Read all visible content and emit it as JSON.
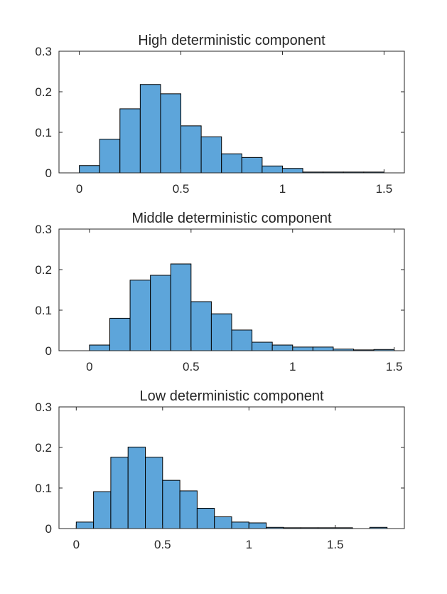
{
  "chart_data": [
    {
      "type": "bar",
      "title": "High deterministic component",
      "xlabel": "",
      "ylabel": "",
      "bin_width": 0.1,
      "bins": [
        {
          "x0": 0.0,
          "x1": 0.1,
          "value": 0.018
        },
        {
          "x0": 0.1,
          "x1": 0.2,
          "value": 0.083
        },
        {
          "x0": 0.2,
          "x1": 0.3,
          "value": 0.158
        },
        {
          "x0": 0.3,
          "x1": 0.4,
          "value": 0.218
        },
        {
          "x0": 0.4,
          "x1": 0.5,
          "value": 0.195
        },
        {
          "x0": 0.5,
          "x1": 0.6,
          "value": 0.116
        },
        {
          "x0": 0.6,
          "x1": 0.7,
          "value": 0.089
        },
        {
          "x0": 0.7,
          "x1": 0.8,
          "value": 0.047
        },
        {
          "x0": 0.8,
          "x1": 0.9,
          "value": 0.038
        },
        {
          "x0": 0.9,
          "x1": 1.0,
          "value": 0.017
        },
        {
          "x0": 1.0,
          "x1": 1.1,
          "value": 0.011
        },
        {
          "x0": 1.1,
          "x1": 1.2,
          "value": 0.002
        },
        {
          "x0": 1.2,
          "x1": 1.3,
          "value": 0.002
        },
        {
          "x0": 1.3,
          "x1": 1.4,
          "value": 0.002
        },
        {
          "x0": 1.4,
          "x1": 1.5,
          "value": 0.002
        }
      ],
      "xlim": [
        -0.1,
        1.6
      ],
      "ylim": [
        0,
        0.3
      ],
      "xticks": [
        0,
        0.5,
        1,
        1.5
      ],
      "xtick_labels": [
        "0",
        "0.5",
        "1",
        "1.5"
      ],
      "yticks": [
        0,
        0.1,
        0.2,
        0.3
      ],
      "ytick_labels": [
        "0",
        "0.1",
        "0.2",
        "0.3"
      ],
      "grid": false
    },
    {
      "type": "bar",
      "title": "Middle deterministic component",
      "xlabel": "",
      "ylabel": "",
      "bin_width": 0.1,
      "bins": [
        {
          "x0": 0.0,
          "x1": 0.1,
          "value": 0.014
        },
        {
          "x0": 0.1,
          "x1": 0.2,
          "value": 0.08
        },
        {
          "x0": 0.2,
          "x1": 0.3,
          "value": 0.174
        },
        {
          "x0": 0.3,
          "x1": 0.4,
          "value": 0.186
        },
        {
          "x0": 0.4,
          "x1": 0.5,
          "value": 0.214
        },
        {
          "x0": 0.5,
          "x1": 0.6,
          "value": 0.121
        },
        {
          "x0": 0.6,
          "x1": 0.7,
          "value": 0.091
        },
        {
          "x0": 0.7,
          "x1": 0.8,
          "value": 0.051
        },
        {
          "x0": 0.8,
          "x1": 0.9,
          "value": 0.021
        },
        {
          "x0": 0.9,
          "x1": 1.0,
          "value": 0.014
        },
        {
          "x0": 1.0,
          "x1": 1.1,
          "value": 0.009
        },
        {
          "x0": 1.1,
          "x1": 1.2,
          "value": 0.009
        },
        {
          "x0": 1.2,
          "x1": 1.3,
          "value": 0.004
        },
        {
          "x0": 1.3,
          "x1": 1.4,
          "value": 0.002
        },
        {
          "x0": 1.4,
          "x1": 1.5,
          "value": 0.003
        }
      ],
      "xlim": [
        -0.15,
        1.55
      ],
      "ylim": [
        0,
        0.3
      ],
      "xticks": [
        0,
        0.5,
        1,
        1.5
      ],
      "xtick_labels": [
        "0",
        "0.5",
        "1",
        "1.5"
      ],
      "yticks": [
        0,
        0.1,
        0.2,
        0.3
      ],
      "ytick_labels": [
        "0",
        "0.1",
        "0.2",
        "0.3"
      ],
      "grid": false
    },
    {
      "type": "bar",
      "title": "Low deterministic component",
      "xlabel": "",
      "ylabel": "",
      "bin_width": 0.1,
      "bins": [
        {
          "x0": 0.0,
          "x1": 0.1,
          "value": 0.016
        },
        {
          "x0": 0.1,
          "x1": 0.2,
          "value": 0.091
        },
        {
          "x0": 0.2,
          "x1": 0.3,
          "value": 0.176
        },
        {
          "x0": 0.3,
          "x1": 0.4,
          "value": 0.201
        },
        {
          "x0": 0.4,
          "x1": 0.5,
          "value": 0.176
        },
        {
          "x0": 0.5,
          "x1": 0.6,
          "value": 0.119
        },
        {
          "x0": 0.6,
          "x1": 0.7,
          "value": 0.093
        },
        {
          "x0": 0.7,
          "x1": 0.8,
          "value": 0.05
        },
        {
          "x0": 0.8,
          "x1": 0.9,
          "value": 0.029
        },
        {
          "x0": 0.9,
          "x1": 1.0,
          "value": 0.016
        },
        {
          "x0": 1.0,
          "x1": 1.1,
          "value": 0.014
        },
        {
          "x0": 1.1,
          "x1": 1.2,
          "value": 0.003
        },
        {
          "x0": 1.2,
          "x1": 1.3,
          "value": 0.002
        },
        {
          "x0": 1.3,
          "x1": 1.4,
          "value": 0.002
        },
        {
          "x0": 1.4,
          "x1": 1.5,
          "value": 0.002
        },
        {
          "x0": 1.5,
          "x1": 1.6,
          "value": 0.002
        },
        {
          "x0": 1.7,
          "x1": 1.8,
          "value": 0.003
        }
      ],
      "xlim": [
        -0.1,
        1.9
      ],
      "ylim": [
        0,
        0.3
      ],
      "xticks": [
        0,
        0.5,
        1,
        1.5
      ],
      "xtick_labels": [
        "0",
        "0.5",
        "1",
        "1.5"
      ],
      "yticks": [
        0,
        0.1,
        0.2,
        0.3
      ],
      "ytick_labels": [
        "0",
        "0.1",
        "0.2",
        "0.3"
      ],
      "grid": false
    }
  ],
  "colors": {
    "bar_fill": "#5DA5DA",
    "bar_edge": "#000000",
    "axis": "#262626",
    "background": "#FFFFFF"
  }
}
